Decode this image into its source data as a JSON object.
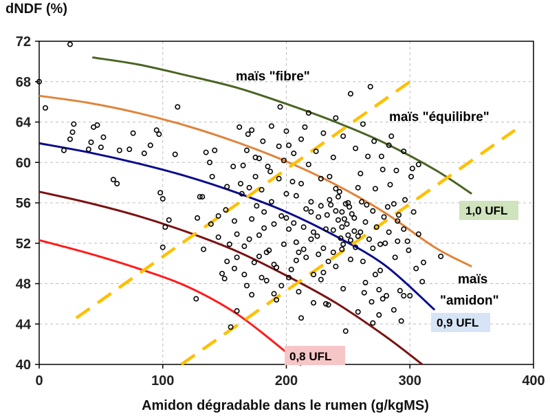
{
  "chart_data": {
    "type": "scatter",
    "ylabel": "dNDF (%)",
    "xlabel": "Amidon dégradable dans le rumen (g/kgMS)",
    "xlim": [
      0,
      400
    ],
    "ylim": [
      40,
      72
    ],
    "xticks": [
      0,
      100,
      200,
      300,
      400
    ],
    "yticks": [
      40,
      44,
      48,
      52,
      56,
      60,
      64,
      68,
      72
    ],
    "grid": "vertical dashed + horizontal dashed",
    "scatter_points": [
      [
        0,
        68
      ],
      [
        5,
        65.4
      ],
      [
        25,
        71.7
      ],
      [
        20,
        61.2
      ],
      [
        25,
        62.3
      ],
      [
        27,
        63
      ],
      [
        28,
        63.8
      ],
      [
        40,
        61.3
      ],
      [
        44,
        63.5
      ],
      [
        47,
        63.7
      ],
      [
        42,
        62
      ],
      [
        50,
        61.5
      ],
      [
        52,
        62.5
      ],
      [
        60,
        58.3
      ],
      [
        63,
        57.9
      ],
      [
        65,
        61.2
      ],
      [
        73,
        61.3
      ],
      [
        76,
        62.9
      ],
      [
        85,
        60.9
      ],
      [
        90,
        61.7
      ],
      [
        95,
        63.2
      ],
      [
        97,
        62.8
      ],
      [
        98,
        57
      ],
      [
        100,
        56.4
      ],
      [
        100,
        51.6
      ],
      [
        102,
        53.6
      ],
      [
        105,
        54.3
      ],
      [
        110,
        60.8
      ],
      [
        112,
        65.5
      ],
      [
        127,
        46.5
      ],
      [
        128,
        54.5
      ],
      [
        130,
        56.6
      ],
      [
        132,
        56.6
      ],
      [
        135,
        61
      ],
      [
        138,
        60
      ],
      [
        140,
        58.6
      ],
      [
        142,
        61.2
      ],
      [
        145,
        54.7
      ],
      [
        148,
        49
      ],
      [
        150,
        48.5
      ],
      [
        152,
        50.2
      ],
      [
        155,
        43.7
      ],
      [
        158,
        49.5
      ],
      [
        160,
        52.9
      ],
      [
        162,
        63.5
      ],
      [
        165,
        59.7
      ],
      [
        168,
        61.2
      ],
      [
        170,
        57.5
      ],
      [
        172,
        63.2
      ],
      [
        175,
        58.6
      ],
      [
        178,
        60.4
      ],
      [
        180,
        57.3
      ],
      [
        182,
        55.1
      ],
      [
        185,
        59.6
      ],
      [
        188,
        63.6
      ],
      [
        190,
        47
      ],
      [
        192,
        46.4
      ],
      [
        195,
        65.5
      ],
      [
        198,
        60.2
      ],
      [
        200,
        54.5
      ],
      [
        202,
        61.7
      ],
      [
        205,
        58.1
      ],
      [
        208,
        56.7
      ],
      [
        210,
        51.1
      ],
      [
        212,
        44.6
      ],
      [
        215,
        63.5
      ],
      [
        218,
        64.9
      ],
      [
        220,
        56.1
      ],
      [
        222,
        48.9
      ],
      [
        225,
        52.7
      ],
      [
        228,
        55.7
      ],
      [
        230,
        51.5
      ],
      [
        232,
        46
      ],
      [
        235,
        58.6
      ],
      [
        238,
        60.5
      ],
      [
        240,
        57.4
      ],
      [
        242,
        54.3
      ],
      [
        245,
        51.4
      ],
      [
        248,
        43.3
      ],
      [
        250,
        56
      ],
      [
        252,
        66.8
      ],
      [
        255,
        54.5
      ],
      [
        258,
        57.5
      ],
      [
        260,
        53.1
      ],
      [
        262,
        50.2
      ],
      [
        265,
        55.8
      ],
      [
        268,
        67.5
      ],
      [
        270,
        51.5
      ],
      [
        272,
        48.9
      ],
      [
        275,
        47.4
      ],
      [
        278,
        46.5
      ],
      [
        280,
        52
      ],
      [
        282,
        55.6
      ],
      [
        285,
        62.6
      ],
      [
        288,
        50.6
      ],
      [
        290,
        52.2
      ],
      [
        292,
        47.3
      ],
      [
        295,
        46.8
      ],
      [
        298,
        52.2
      ],
      [
        300,
        46.8
      ],
      [
        302,
        59.4
      ],
      [
        305,
        49.5
      ],
      [
        310,
        48.2
      ],
      [
        325,
        50.7
      ],
      [
        235,
        56.3
      ],
      [
        240,
        55.2
      ],
      [
        245,
        53.6
      ],
      [
        250,
        52.8
      ],
      [
        248,
        55.9
      ],
      [
        243,
        57.1
      ],
      [
        238,
        53.3
      ],
      [
        233,
        54.8
      ],
      [
        228,
        58.4
      ],
      [
        222,
        53.1
      ],
      [
        216,
        55.4
      ],
      [
        212,
        57.9
      ],
      [
        206,
        54
      ],
      [
        200,
        56.9
      ],
      [
        194,
        58.4
      ],
      [
        188,
        56.1
      ],
      [
        182,
        53.5
      ],
      [
        176,
        55.7
      ],
      [
        170,
        52.4
      ],
      [
        164,
        56.9
      ],
      [
        158,
        54.2
      ],
      [
        152,
        57.6
      ],
      [
        160,
        45.3
      ],
      [
        168,
        47.8
      ],
      [
        174,
        50.1
      ],
      [
        180,
        48.6
      ],
      [
        186,
        51.3
      ],
      [
        192,
        49.6
      ],
      [
        198,
        51.9
      ],
      [
        204,
        49.4
      ],
      [
        210,
        47.2
      ],
      [
        216,
        50.6
      ],
      [
        222,
        46.1
      ],
      [
        228,
        48.4
      ],
      [
        234,
        45.9
      ],
      [
        240,
        49.7
      ],
      [
        246,
        47.5
      ],
      [
        252,
        50.4
      ],
      [
        258,
        45.2
      ],
      [
        264,
        48.1
      ],
      [
        270,
        44.1
      ],
      [
        276,
        49.3
      ],
      [
        260,
        58.9
      ],
      [
        266,
        60.6
      ],
      [
        272,
        57.4
      ],
      [
        278,
        59.3
      ],
      [
        284,
        57.8
      ],
      [
        290,
        54.2
      ],
      [
        296,
        56.3
      ],
      [
        256,
        61.4
      ],
      [
        262,
        63.8
      ],
      [
        246,
        62.6
      ],
      [
        240,
        64.4
      ],
      [
        230,
        62.9
      ],
      [
        224,
        61.1
      ],
      [
        218,
        59.8
      ],
      [
        212,
        62.3
      ],
      [
        206,
        60.9
      ],
      [
        200,
        63.1
      ],
      [
        194,
        61.6
      ],
      [
        187,
        59.1
      ],
      [
        181,
        62.1
      ],
      [
        175,
        60.5
      ],
      [
        169,
        62.8
      ],
      [
        163,
        57.9
      ],
      [
        157,
        59.6
      ],
      [
        151,
        55.3
      ],
      [
        145,
        52.6
      ],
      [
        139,
        53.9
      ],
      [
        133,
        51.4
      ],
      [
        245,
        55.1
      ],
      [
        247,
        54.4
      ],
      [
        249,
        53.9
      ],
      [
        251,
        55.6
      ],
      [
        253,
        54.9
      ],
      [
        255,
        53.2
      ],
      [
        244,
        52.5
      ],
      [
        246,
        51.9
      ],
      [
        252,
        52.3
      ],
      [
        256,
        51.6
      ],
      [
        258,
        52.7
      ],
      [
        242,
        56.6
      ],
      [
        236,
        55.8
      ],
      [
        232,
        53.4
      ],
      [
        226,
        54.6
      ],
      [
        220,
        55.1
      ],
      [
        214,
        53.6
      ],
      [
        208,
        52.1
      ],
      [
        202,
        53.4
      ],
      [
        196,
        54.7
      ],
      [
        190,
        53.9
      ],
      [
        184,
        51.1
      ],
      [
        178,
        52.8
      ],
      [
        172,
        54.4
      ],
      [
        166,
        51.7
      ],
      [
        160,
        50.6
      ],
      [
        154,
        51.9
      ],
      [
        234,
        50.2
      ],
      [
        238,
        51.1
      ],
      [
        230,
        49.1
      ],
      [
        226,
        50.9
      ],
      [
        220,
        52.4
      ],
      [
        214,
        51.4
      ],
      [
        208,
        50.3
      ],
      [
        202,
        48.6
      ],
      [
        196,
        47.8
      ],
      [
        190,
        49.9
      ],
      [
        184,
        48.3
      ],
      [
        178,
        50.7
      ],
      [
        172,
        46.9
      ],
      [
        166,
        48.9
      ],
      [
        261,
        56.1
      ],
      [
        264,
        54.1
      ],
      [
        267,
        52.4
      ],
      [
        270,
        55.2
      ],
      [
        273,
        53.6
      ],
      [
        276,
        51.9
      ],
      [
        279,
        54.6
      ],
      [
        283,
        53.1
      ],
      [
        287,
        55.9
      ],
      [
        291,
        54.8
      ],
      [
        295,
        53.4
      ],
      [
        299,
        51.3
      ],
      [
        303,
        55.1
      ],
      [
        307,
        52.9
      ],
      [
        311,
        50.1
      ],
      [
        263,
        47.1
      ],
      [
        269,
        46.2
      ],
      [
        275,
        44.9
      ],
      [
        281,
        46.8
      ],
      [
        287,
        45.4
      ],
      [
        293,
        44.3
      ],
      [
        271,
        62.1
      ],
      [
        277,
        60.6
      ],
      [
        283,
        61.7
      ],
      [
        289,
        59.2
      ],
      [
        295,
        61.1
      ],
      [
        301,
        58.6
      ],
      [
        307,
        59.8
      ]
    ],
    "series": [
      {
        "name": "1,0 UFL",
        "color": "#4a6423",
        "x": [
          43,
          80,
          120,
          160,
          200,
          240,
          280,
          320,
          350
        ],
        "y": [
          70.4,
          69.7,
          68.6,
          67.4,
          65.8,
          64.0,
          61.9,
          59.3,
          56.9
        ]
      },
      {
        "name": "0,9 UFL",
        "color": "#0a0a8c",
        "x": [
          0,
          40,
          80,
          120,
          160,
          200,
          240,
          280,
          320
        ],
        "y": [
          61.9,
          61.0,
          59.9,
          58.6,
          57.0,
          55.1,
          52.7,
          49.8,
          45.4
        ]
      },
      {
        "name": "0,8 UFL",
        "color": "#ff1a1a",
        "x": [
          0,
          40,
          80,
          120,
          160,
          200,
          212
        ],
        "y": [
          52.3,
          51.0,
          49.5,
          47.7,
          45.0,
          41.2,
          39.9
        ]
      },
      {
        "name": "maïs amidon curve",
        "color": "#e0843a",
        "x": [
          0,
          40,
          80,
          120,
          160,
          200,
          240,
          280,
          320,
          350
        ],
        "y": [
          66.6,
          65.9,
          64.9,
          63.6,
          62.0,
          60.1,
          57.8,
          55.0,
          51.6,
          49.7
        ]
      },
      {
        "name": "dark red curve",
        "color": "#7a1212",
        "x": [
          0,
          40,
          80,
          120,
          160,
          200,
          240,
          280,
          310
        ],
        "y": [
          57.1,
          56.0,
          54.7,
          53.1,
          51.2,
          48.8,
          46.1,
          42.8,
          40.0
        ]
      }
    ],
    "separator_lines": [
      {
        "label": "maïs \"fibre\"",
        "color": "#ffc000",
        "x": [
          30,
          300
        ],
        "y": [
          44.6,
          68.0
        ]
      },
      {
        "label": "maïs \"équilibre\"",
        "color": "#ffc000",
        "x": [
          115,
          385
        ],
        "y": [
          40.0,
          63.2
        ]
      }
    ],
    "annotations": [
      {
        "text": "maïs \"fibre\"",
        "color": "#e0843a"
      },
      {
        "text": "maïs \"équilibre\"",
        "color": "#e0843a"
      },
      {
        "text": "maïs",
        "color": "#e0843a"
      },
      {
        "text": "\"amidon\"",
        "color": "#e0843a"
      },
      {
        "text": "1,0 UFL",
        "color": "#2f6b1a",
        "bg": "#cfe3bd"
      },
      {
        "text": "0,9 UFL",
        "color": "#0a0aa8",
        "bg": "#d6e4f5"
      },
      {
        "text": "0,8 UFL",
        "color": "#e01010",
        "bg": "#f6c6c6"
      }
    ]
  }
}
